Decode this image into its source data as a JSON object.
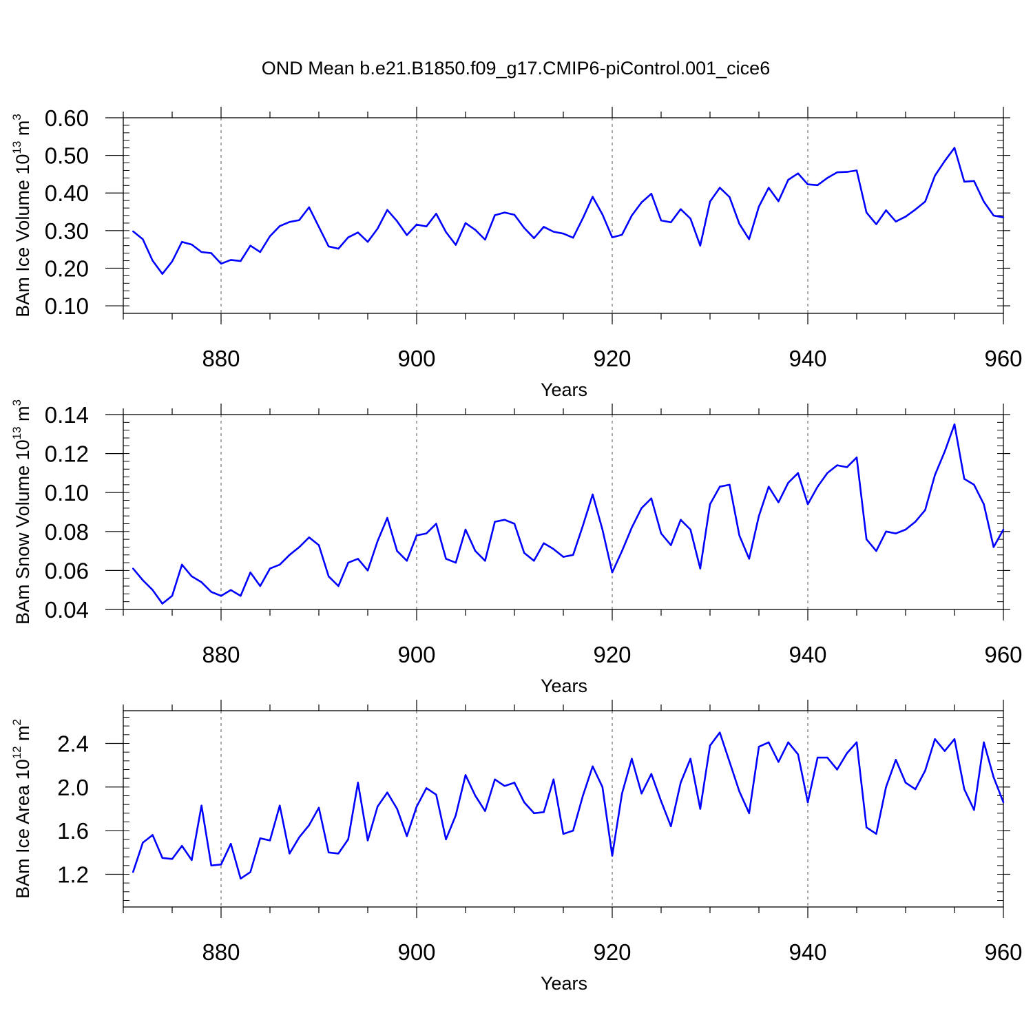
{
  "title": "OND Mean b.e21.B1850.f09_g17.CMIP6-piControl.001_cice6",
  "colors": {
    "line": "#0000ff",
    "axis": "#000000",
    "grid": "#555555"
  },
  "chart_data": [
    {
      "type": "line",
      "name": "ice-volume",
      "ylabel": {
        "main": "BAm Ice Volume 10",
        "sup": "13",
        "unit": " m",
        "unit_sup": "3"
      },
      "xlabel": "Years",
      "xlim": [
        870,
        960
      ],
      "ylim": [
        0.08,
        0.6
      ],
      "yticks": [
        0.1,
        0.2,
        0.3,
        0.4,
        0.5,
        0.6
      ],
      "yticklabels": [
        "0.10",
        "0.20",
        "0.30",
        "0.40",
        "0.50",
        "0.60"
      ],
      "xticks": [
        880,
        900,
        920,
        940,
        960
      ],
      "xticklabels": [
        "880",
        "900",
        "920",
        "940",
        "960"
      ],
      "x_start": 871,
      "values": [
        0.298,
        0.277,
        0.22,
        0.185,
        0.218,
        0.27,
        0.263,
        0.243,
        0.24,
        0.212,
        0.222,
        0.219,
        0.26,
        0.243,
        0.285,
        0.312,
        0.323,
        0.328,
        0.362,
        0.31,
        0.258,
        0.252,
        0.282,
        0.295,
        0.27,
        0.305,
        0.355,
        0.325,
        0.288,
        0.316,
        0.311,
        0.345,
        0.296,
        0.262,
        0.32,
        0.302,
        0.276,
        0.341,
        0.348,
        0.342,
        0.307,
        0.28,
        0.31,
        0.297,
        0.292,
        0.281,
        0.333,
        0.39,
        0.343,
        0.282,
        0.289,
        0.34,
        0.375,
        0.398,
        0.327,
        0.322,
        0.357,
        0.332,
        0.26,
        0.377,
        0.414,
        0.389,
        0.318,
        0.277,
        0.364,
        0.414,
        0.378,
        0.435,
        0.452,
        0.423,
        0.421,
        0.44,
        0.455,
        0.456,
        0.46,
        0.348,
        0.317,
        0.354,
        0.324,
        0.337,
        0.356,
        0.377,
        0.446,
        0.485,
        0.52,
        0.43,
        0.432,
        0.377,
        0.34,
        0.335
      ]
    },
    {
      "type": "line",
      "name": "snow-volume",
      "ylabel": {
        "main": "BAm Snow Volume 10",
        "sup": "13",
        "unit": " m",
        "unit_sup": "3"
      },
      "xlabel": "Years",
      "xlim": [
        870,
        960
      ],
      "ylim": [
        0.04,
        0.14
      ],
      "yticks": [
        0.04,
        0.06,
        0.08,
        0.1,
        0.12,
        0.14
      ],
      "yticklabels": [
        "0.04",
        "0.06",
        "0.08",
        "0.10",
        "0.12",
        "0.14"
      ],
      "xticks": [
        880,
        900,
        920,
        940,
        960
      ],
      "xticklabels": [
        "880",
        "900",
        "920",
        "940",
        "960"
      ],
      "x_start": 871,
      "values": [
        0.061,
        0.055,
        0.05,
        0.043,
        0.047,
        0.063,
        0.057,
        0.054,
        0.049,
        0.047,
        0.05,
        0.047,
        0.059,
        0.052,
        0.061,
        0.063,
        0.068,
        0.072,
        0.077,
        0.073,
        0.057,
        0.052,
        0.064,
        0.066,
        0.06,
        0.075,
        0.087,
        0.07,
        0.065,
        0.078,
        0.079,
        0.084,
        0.066,
        0.064,
        0.081,
        0.07,
        0.065,
        0.085,
        0.086,
        0.084,
        0.069,
        0.065,
        0.074,
        0.071,
        0.067,
        0.068,
        0.083,
        0.099,
        0.081,
        0.059,
        0.07,
        0.082,
        0.092,
        0.097,
        0.079,
        0.073,
        0.086,
        0.081,
        0.061,
        0.094,
        0.103,
        0.104,
        0.078,
        0.066,
        0.088,
        0.103,
        0.095,
        0.105,
        0.11,
        0.094,
        0.103,
        0.11,
        0.114,
        0.113,
        0.118,
        0.076,
        0.07,
        0.08,
        0.079,
        0.081,
        0.085,
        0.091,
        0.109,
        0.121,
        0.135,
        0.107,
        0.104,
        0.094,
        0.072,
        0.081
      ]
    },
    {
      "type": "line",
      "name": "ice-area",
      "ylabel": {
        "main": "BAm Ice Area 10",
        "sup": "12",
        "unit": " m",
        "unit_sup": "2"
      },
      "xlabel": "Years",
      "xlim": [
        870,
        960
      ],
      "ylim": [
        0.9,
        2.7
      ],
      "yticks": [
        1.2,
        1.6,
        2.0,
        2.4
      ],
      "yticklabels": [
        "1.2",
        "1.6",
        "2.0",
        "2.4"
      ],
      "xticks": [
        880,
        900,
        920,
        940,
        960
      ],
      "xticklabels": [
        "880",
        "900",
        "920",
        "940",
        "960"
      ],
      "x_start": 871,
      "values": [
        1.22,
        1.49,
        1.56,
        1.35,
        1.34,
        1.46,
        1.33,
        1.83,
        1.28,
        1.29,
        1.48,
        1.16,
        1.22,
        1.53,
        1.51,
        1.83,
        1.39,
        1.54,
        1.65,
        1.81,
        1.4,
        1.39,
        1.52,
        2.04,
        1.51,
        1.82,
        1.95,
        1.8,
        1.55,
        1.82,
        1.99,
        1.93,
        1.52,
        1.74,
        2.11,
        1.92,
        1.78,
        2.07,
        2.01,
        2.04,
        1.86,
        1.76,
        1.77,
        2.07,
        1.57,
        1.6,
        1.92,
        2.19,
        2.0,
        1.37,
        1.94,
        2.26,
        1.94,
        2.12,
        1.87,
        1.64,
        2.04,
        2.26,
        1.8,
        2.38,
        2.5,
        2.23,
        1.96,
        1.76,
        2.37,
        2.41,
        2.23,
        2.41,
        2.3,
        1.86,
        2.27,
        2.27,
        2.16,
        2.31,
        2.41,
        1.63,
        1.57,
        2.0,
        2.25,
        2.04,
        1.98,
        2.15,
        2.44,
        2.33,
        2.44,
        1.98,
        1.79,
        2.41,
        2.09,
        1.86
      ]
    }
  ]
}
